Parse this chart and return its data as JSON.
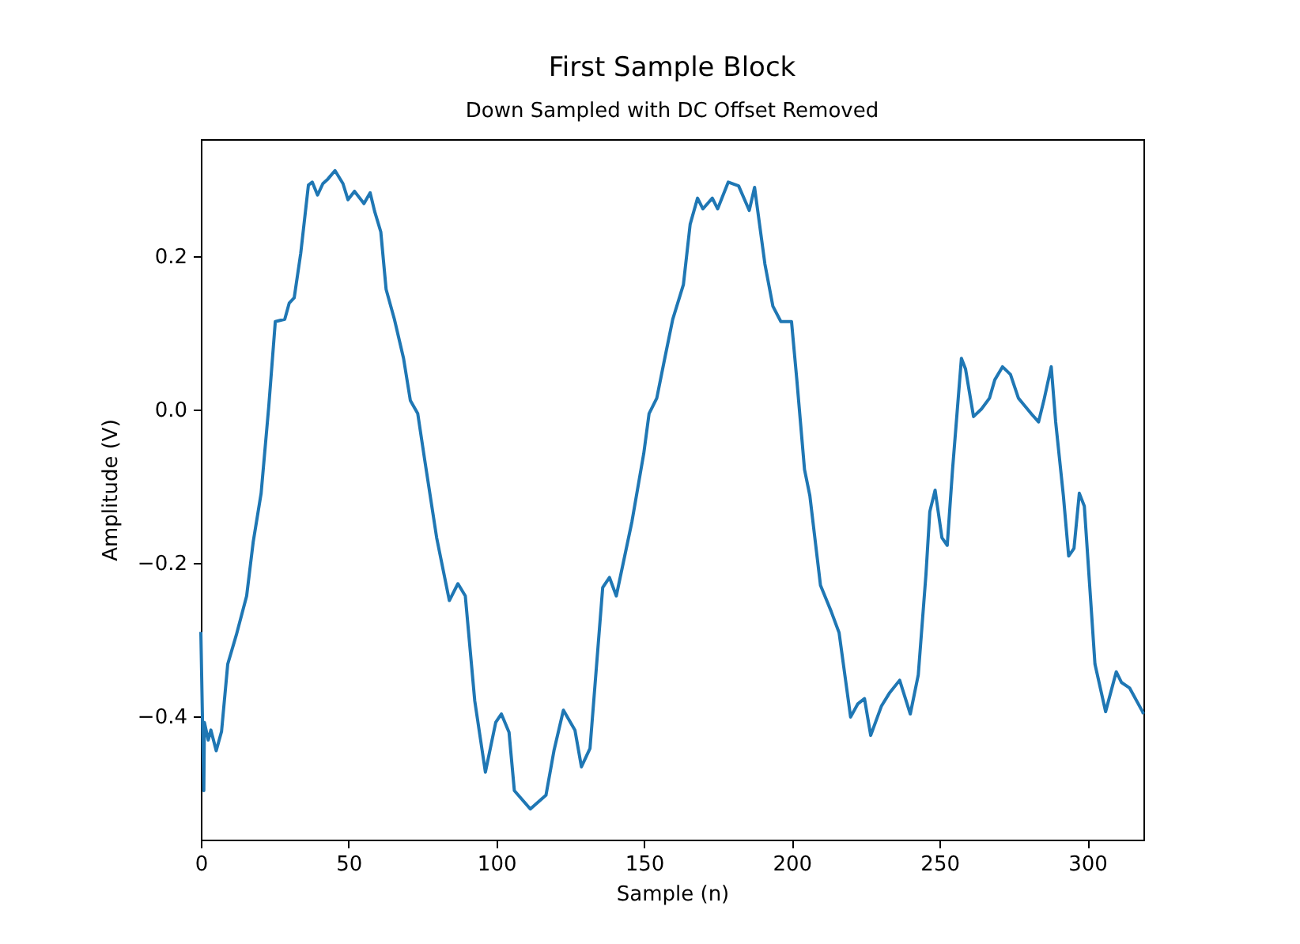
{
  "chart_data": {
    "type": "line",
    "title": "First Sample Block",
    "subtitle": "Down Sampled with DC Offset Removed",
    "xlabel": "Sample (n)",
    "ylabel": "Amplitude (V)",
    "xlim": [
      0,
      319
    ],
    "ylim": [
      -0.561,
      0.353
    ],
    "xticks": [
      0,
      50,
      100,
      150,
      200,
      250,
      300
    ],
    "yticks": [
      {
        "value": -0.4,
        "label": "−0.4"
      },
      {
        "value": -0.2,
        "label": "−0.2"
      },
      {
        "value": 0.0,
        "label": "0.0"
      },
      {
        "value": 0.2,
        "label": "0.2"
      }
    ],
    "grid": false,
    "line_style": "solid",
    "marker": "none",
    "series": [
      {
        "color": "#1f77b4",
        "x": [
          0,
          1,
          1.2,
          2.5,
          3.4,
          5.2,
          7,
          9.1,
          12,
          15.5,
          17.7,
          20.4,
          23,
          25.2,
          28.4,
          29.9,
          31.6,
          33.8,
          36.4,
          37.7,
          39.5,
          41.3,
          43,
          45.4,
          48.1,
          49.8,
          52,
          55.2,
          57.3,
          58.8,
          60.9,
          62.7,
          65.5,
          68.6,
          70.9,
          73.4,
          75.7,
          79.8,
          84.1,
          87,
          89.5,
          92.7,
          96.3,
          99.8,
          101.7,
          104.3,
          106.1,
          111.5,
          116.8,
          119.5,
          122.7,
          126.6,
          128.8,
          131.7,
          136,
          138.3,
          140.6,
          145.9,
          149.9,
          151.7,
          154.3,
          157,
          159.7,
          163.3,
          165.6,
          168.1,
          169.9,
          173.1,
          174.9,
          178.5,
          182,
          185.6,
          187.4,
          190.9,
          193.6,
          196.3,
          199.9,
          201.7,
          204.3,
          206.1,
          209.7,
          213.3,
          216,
          219.9,
          222.3,
          224.6,
          226.7,
          230.3,
          233,
          236.5,
          240.1,
          242.8,
          245.4,
          246.7,
          248.5,
          250.8,
          252.6,
          254.4,
          257.4,
          258.8,
          261.5,
          264.2,
          266.9,
          268.7,
          271.3,
          274,
          276.7,
          281.2,
          283.5,
          285.3,
          287.8,
          289.3,
          291.9,
          293.7,
          295.5,
          297.3,
          299,
          302.6,
          306.2,
          309.8,
          311.6,
          314.3,
          318.7,
          319
        ],
        "values": [
          -0.29,
          -0.497,
          -0.408,
          -0.431,
          -0.418,
          -0.445,
          -0.42,
          -0.332,
          -0.294,
          -0.243,
          -0.173,
          -0.109,
          0.005,
          0.115,
          0.118,
          0.139,
          0.146,
          0.204,
          0.293,
          0.297,
          0.28,
          0.295,
          0.301,
          0.312,
          0.295,
          0.274,
          0.285,
          0.269,
          0.283,
          0.259,
          0.232,
          0.157,
          0.118,
          0.067,
          0.012,
          -0.005,
          -0.064,
          -0.167,
          -0.249,
          -0.227,
          -0.243,
          -0.38,
          -0.473,
          -0.408,
          -0.397,
          -0.421,
          -0.497,
          -0.521,
          -0.503,
          -0.445,
          -0.392,
          -0.418,
          -0.466,
          -0.442,
          -0.232,
          -0.219,
          -0.243,
          -0.146,
          -0.057,
          -0.005,
          0.015,
          0.067,
          0.118,
          0.163,
          0.242,
          0.276,
          0.262,
          0.276,
          0.262,
          0.297,
          0.292,
          0.26,
          0.29,
          0.19,
          0.135,
          0.115,
          0.115,
          0.039,
          -0.078,
          -0.112,
          -0.229,
          -0.263,
          -0.291,
          -0.401,
          -0.384,
          -0.377,
          -0.425,
          -0.387,
          -0.37,
          -0.353,
          -0.397,
          -0.346,
          -0.215,
          -0.133,
          -0.105,
          -0.167,
          -0.177,
          -0.078,
          0.067,
          0.053,
          -0.009,
          0.001,
          0.015,
          0.039,
          0.056,
          0.046,
          0.015,
          -0.006,
          -0.016,
          0.012,
          0.056,
          -0.016,
          -0.112,
          -0.191,
          -0.181,
          -0.109,
          -0.126,
          -0.332,
          -0.394,
          -0.342,
          -0.356,
          -0.363,
          -0.394,
          -0.397
        ]
      }
    ]
  }
}
